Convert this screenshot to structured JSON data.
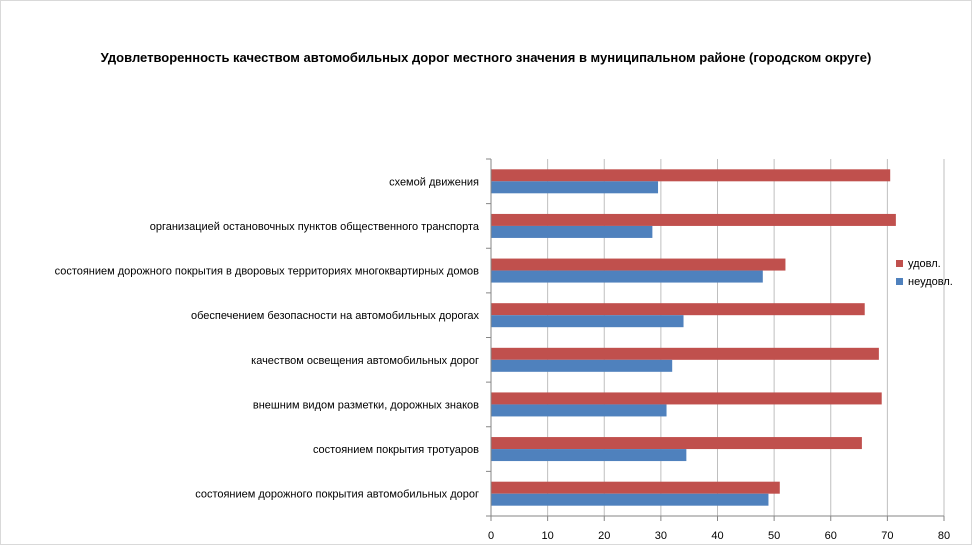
{
  "chart_data": {
    "type": "bar",
    "orientation": "horizontal",
    "title": "Удовлетворенность качеством автомобильных дорог местного значения в муниципальном районе (городском округе)",
    "categories": [
      "схемой движения",
      "организацией остановочных пунктов общественного транспорта",
      "состоянием дорожного покрытия в дворовых территориях многоквартирных домов",
      "обеспечением безопасности на автомобильных дорогах",
      "качеством освещения автомобильных дорог",
      "внешним видом разметки, дорожных знаков",
      "состоянием покрытия тротуаров",
      "состоянием дорожного покрытия автомобильных дорог"
    ],
    "series": [
      {
        "name": "удовл.",
        "color": "#c0504d",
        "values": [
          70.5,
          71.5,
          52,
          66,
          68.5,
          69,
          65.5,
          51
        ]
      },
      {
        "name": "неудовл.",
        "color": "#4f81bd",
        "values": [
          29.5,
          28.5,
          48,
          34,
          32,
          31,
          34.5,
          49
        ]
      }
    ],
    "xlim": [
      0,
      80
    ],
    "xticks": [
      0,
      10,
      20,
      30,
      40,
      50,
      60,
      70,
      80
    ],
    "grid": "vertical",
    "legend": "right"
  }
}
